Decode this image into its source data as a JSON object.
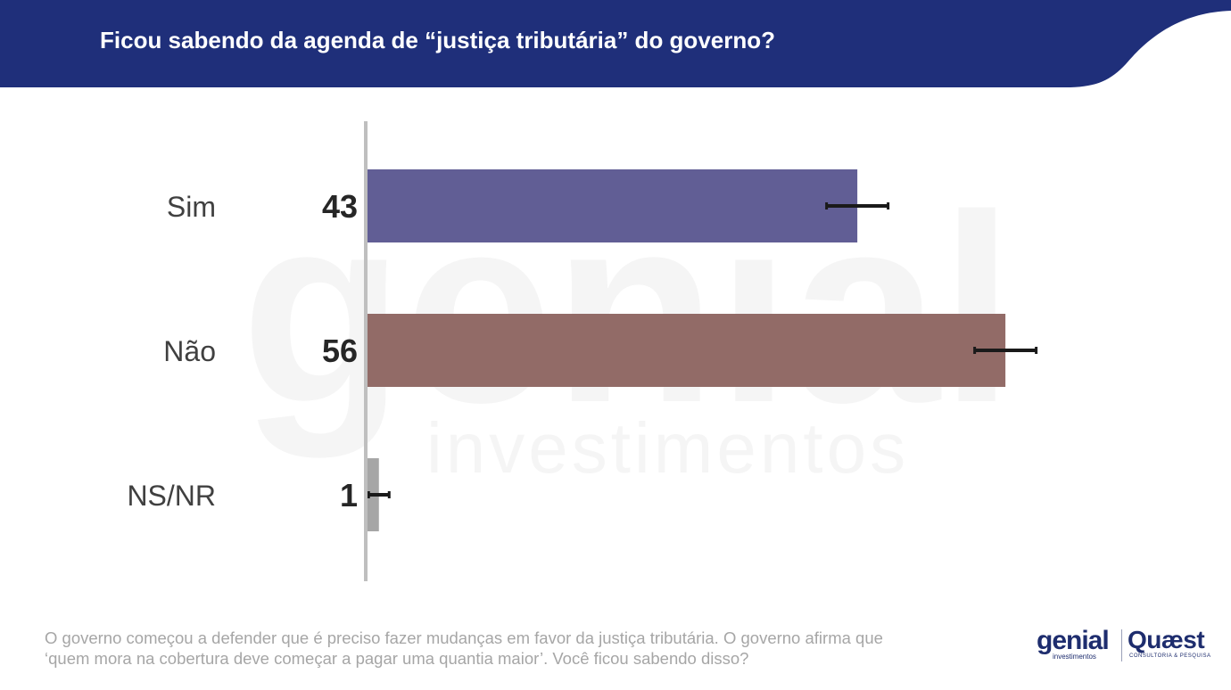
{
  "header": {
    "title": "Ficou sabendo da agenda de “justiça tributária” do governo?",
    "background_color": "#1f2f7a"
  },
  "chart_data": {
    "type": "bar",
    "orientation": "horizontal",
    "title": "Ficou sabendo da agenda de “justiça tributária” do governo?",
    "categories": [
      "Sim",
      "Não",
      "NS/NR"
    ],
    "values": [
      43,
      56,
      1
    ],
    "error_bars": [
      3,
      3,
      1
    ],
    "colors": [
      "#615e95",
      "#926b67",
      "#a6a6a6"
    ],
    "xlim": [
      0,
      70
    ],
    "grid": false
  },
  "watermark": {
    "brand": "genial",
    "tagline": "investimentos"
  },
  "footnote": {
    "line1": "O governo começou a defender que é preciso fazer mudanças em favor da justiça tributária. O governo afirma que",
    "line2": "‘quem mora na cobertura deve começar a pagar uma quantia maior’. Você ficou sabendo disso?"
  },
  "logos": {
    "genial": "genial",
    "genial_sub": "investimentos",
    "quaest": "Quæst",
    "quaest_sub": "CONSULTORIA & PESQUISA",
    "color": "#1e2d6e"
  }
}
